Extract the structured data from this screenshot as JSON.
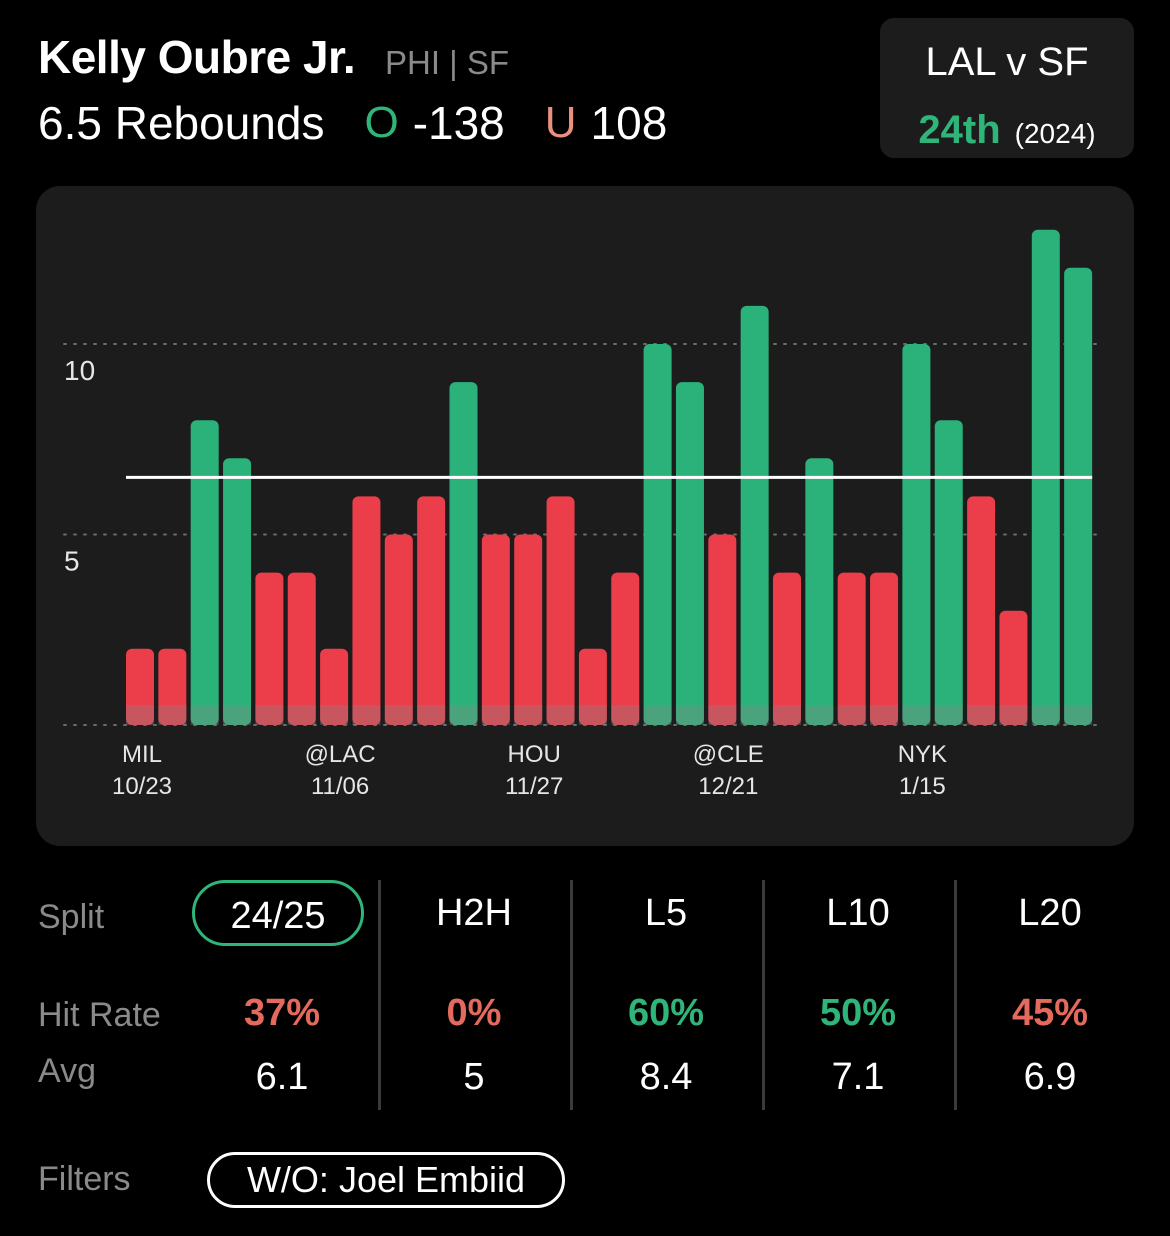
{
  "header": {
    "player_name": "Kelly Oubre Jr.",
    "teams": "PHI | SF",
    "line_label": "6.5 Rebounds",
    "over_letter": "O",
    "over_odds": "-138",
    "under_letter": "U",
    "under_odds": "108"
  },
  "matchup": {
    "title": "LAL v SF",
    "rank": "24th",
    "year": "(2024)"
  },
  "colors": {
    "over": "#2bb27a",
    "under": "#ec3d4a",
    "line": "#ffffff",
    "card_bg": "#1c1c1c"
  },
  "chart_data": {
    "type": "bar",
    "title": "",
    "xlabel": "",
    "ylabel": "",
    "ylim": [
      0,
      13
    ],
    "yticks": [
      5,
      10
    ],
    "line_value": 6.5,
    "grid": true,
    "x_labels": [
      {
        "index": 0,
        "opponent": "MIL",
        "date": "10/23"
      },
      {
        "index": 6,
        "opponent": "@LAC",
        "date": "11/06"
      },
      {
        "index": 12,
        "opponent": "HOU",
        "date": "11/27"
      },
      {
        "index": 18,
        "opponent": "@CLE",
        "date": "12/21"
      },
      {
        "index": 24,
        "opponent": "NYK",
        "date": "1/15"
      }
    ],
    "values": [
      2,
      2,
      8,
      7,
      4,
      4,
      2,
      6,
      5,
      6,
      9,
      5,
      5,
      6,
      2,
      4,
      10,
      9,
      5,
      11,
      4,
      7,
      4,
      4,
      10,
      8,
      6,
      3,
      13,
      12
    ]
  },
  "splits": {
    "row_labels": {
      "split": "Split",
      "hit_rate": "Hit Rate",
      "avg": "Avg"
    },
    "columns": [
      {
        "label": "24/25",
        "hit_rate": "37%",
        "avg": "6.1",
        "selected": true,
        "hit_status": "under"
      },
      {
        "label": "H2H",
        "hit_rate": "0%",
        "avg": "5",
        "selected": false,
        "hit_status": "under"
      },
      {
        "label": "L5",
        "hit_rate": "60%",
        "avg": "8.4",
        "selected": false,
        "hit_status": "over"
      },
      {
        "label": "L10",
        "hit_rate": "50%",
        "avg": "7.1",
        "selected": false,
        "hit_status": "over"
      },
      {
        "label": "L20",
        "hit_rate": "45%",
        "avg": "6.9",
        "selected": false,
        "hit_status": "under"
      }
    ]
  },
  "filters": {
    "label": "Filters",
    "chips": [
      "W/O: Joel Embiid"
    ]
  }
}
